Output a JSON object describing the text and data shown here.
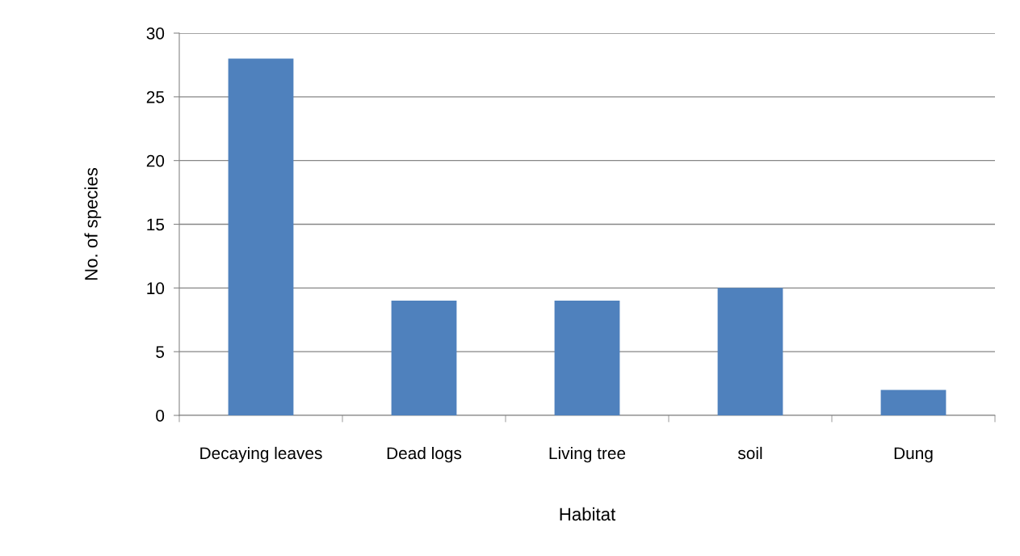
{
  "chart_data": {
    "type": "bar",
    "xlabel": "Habitat",
    "ylabel": "No. of species",
    "categories": [
      "Decaying leaves",
      "Dead logs",
      "Living tree",
      "soil",
      "Dung"
    ],
    "values": [
      28,
      9,
      9,
      10,
      2
    ],
    "color": "#4f81bd",
    "ylim": [
      0,
      30
    ],
    "yticks": [
      0,
      5,
      10,
      15,
      20,
      25,
      30
    ],
    "grid": "y",
    "legend": false
  }
}
